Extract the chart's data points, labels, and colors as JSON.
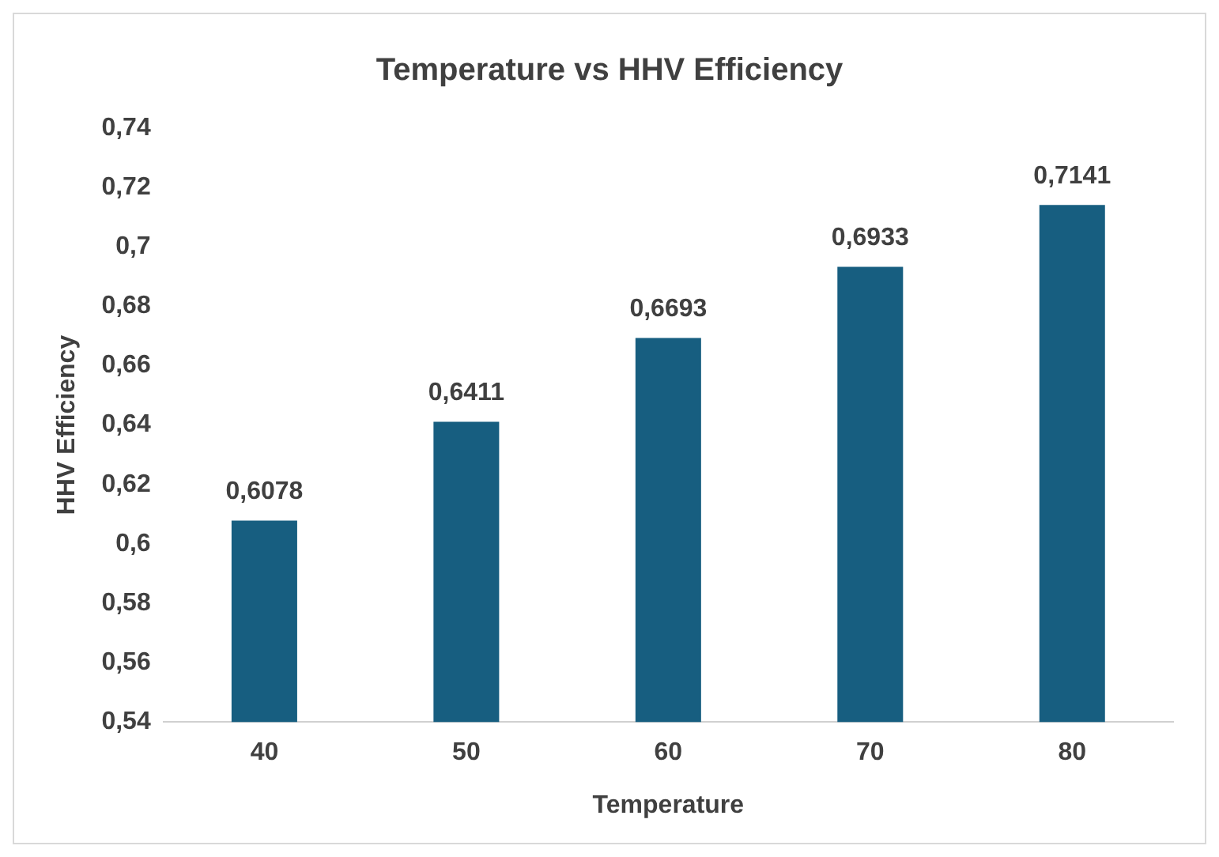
{
  "chart_data": {
    "type": "bar",
    "title": "Temperature vs HHV Efficiency",
    "xlabel": "Temperature",
    "ylabel": "HHV Efficiency",
    "categories": [
      "40",
      "50",
      "60",
      "70",
      "80"
    ],
    "values": [
      0.6078,
      0.6411,
      0.6693,
      0.6933,
      0.7141
    ],
    "value_labels": [
      "0,6078",
      "0,6411",
      "0,6693",
      "0,6933",
      "0,7141"
    ],
    "color": "#175e80",
    "ylim": [
      0.54,
      0.74
    ],
    "yticks": [
      {
        "value": 0.54,
        "label": "0,54"
      },
      {
        "value": 0.56,
        "label": "0,56"
      },
      {
        "value": 0.58,
        "label": "0,58"
      },
      {
        "value": 0.6,
        "label": "0,6"
      },
      {
        "value": 0.62,
        "label": "0,62"
      },
      {
        "value": 0.64,
        "label": "0,64"
      },
      {
        "value": 0.66,
        "label": "0,66"
      },
      {
        "value": 0.68,
        "label": "0,68"
      },
      {
        "value": 0.7,
        "label": "0,7"
      },
      {
        "value": 0.72,
        "label": "0,72"
      },
      {
        "value": 0.74,
        "label": "0,74"
      }
    ],
    "grid": false,
    "legend": false
  }
}
